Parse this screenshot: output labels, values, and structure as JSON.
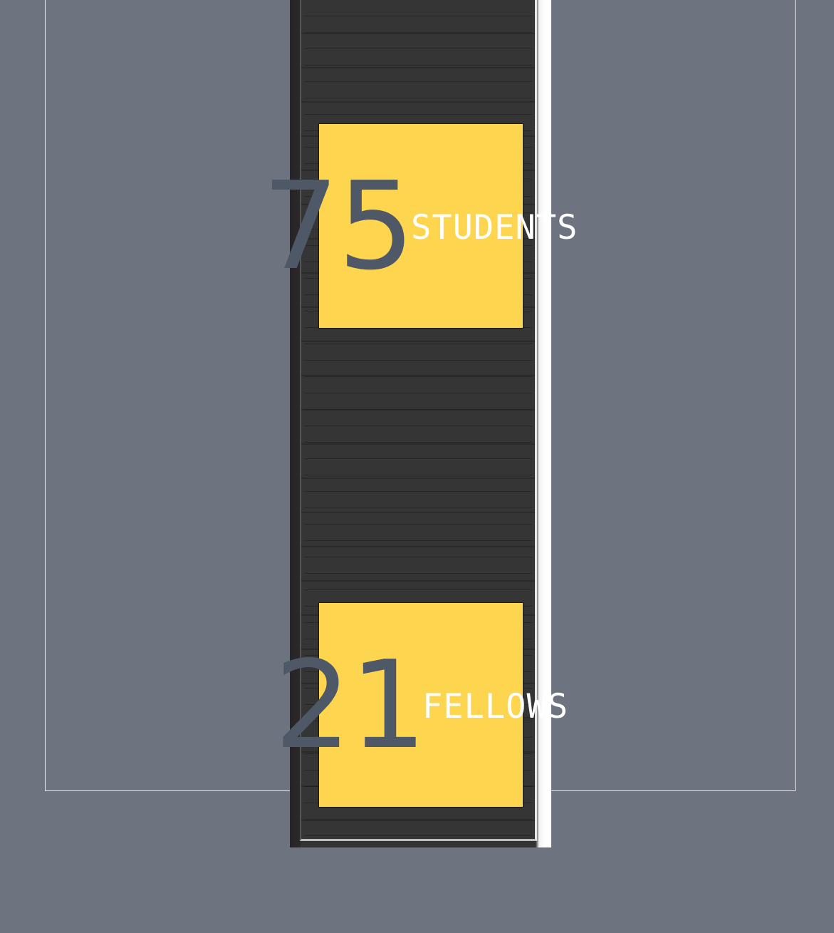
{
  "colors": {
    "background": "#6e7380",
    "panel": "#fdd54f",
    "number": "#4e5866",
    "label": "#ffffff",
    "bookcase": "#333333"
  },
  "stats": [
    {
      "value": "75",
      "label": "STUDENTS"
    },
    {
      "value": "21",
      "label": "FELLOWS"
    }
  ]
}
